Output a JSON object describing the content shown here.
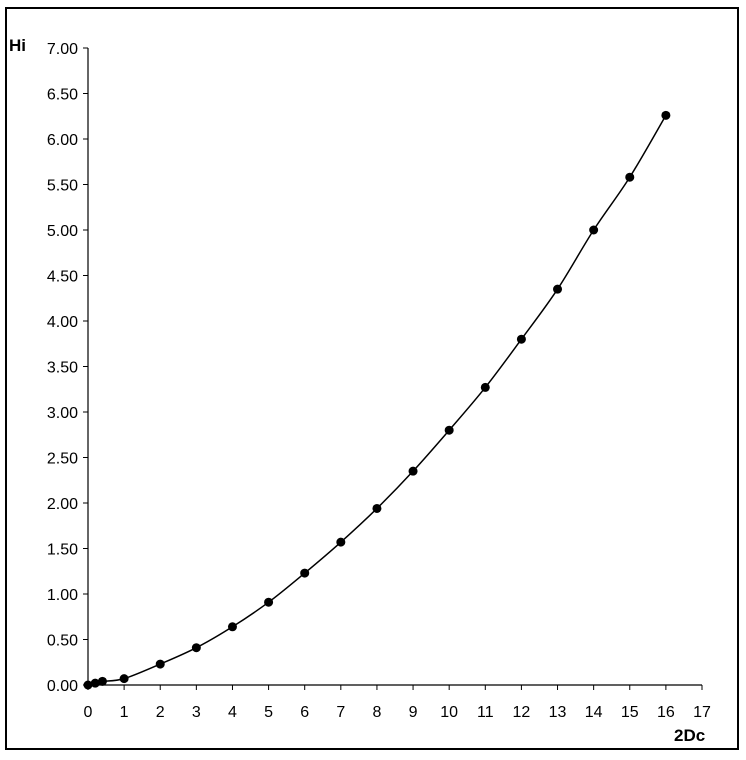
{
  "chart_data": {
    "type": "scatter",
    "title": "",
    "xlabel": "2Dc",
    "ylabel": "Hi",
    "xlim": [
      0,
      17
    ],
    "ylim": [
      0,
      7
    ],
    "x_ticks": [
      0,
      1,
      2,
      3,
      4,
      5,
      6,
      7,
      8,
      9,
      10,
      11,
      12,
      13,
      14,
      15,
      16,
      17
    ],
    "y_ticks": [
      "0.00",
      "0.50",
      "1.00",
      "1.50",
      "2.00",
      "2.50",
      "3.00",
      "3.50",
      "4.00",
      "4.50",
      "5.00",
      "5.50",
      "6.00",
      "6.50",
      "7.00"
    ],
    "grid": false,
    "legend": "none",
    "has_fit_line": true,
    "series": [
      {
        "marker": "filled-circle",
        "color": "#000000",
        "points": [
          {
            "x": 0,
            "y": 0.0
          },
          {
            "x": 0.2,
            "y": 0.02
          },
          {
            "x": 0.4,
            "y": 0.04
          },
          {
            "x": 1,
            "y": 0.07
          },
          {
            "x": 2,
            "y": 0.23
          },
          {
            "x": 3,
            "y": 0.41
          },
          {
            "x": 4,
            "y": 0.64
          },
          {
            "x": 5,
            "y": 0.91
          },
          {
            "x": 6,
            "y": 1.23
          },
          {
            "x": 7,
            "y": 1.57
          },
          {
            "x": 8,
            "y": 1.94
          },
          {
            "x": 9,
            "y": 2.35
          },
          {
            "x": 10,
            "y": 2.8
          },
          {
            "x": 11,
            "y": 3.27
          },
          {
            "x": 12,
            "y": 3.8
          },
          {
            "x": 13,
            "y": 4.35
          },
          {
            "x": 14,
            "y": 5.0
          },
          {
            "x": 15,
            "y": 5.58
          },
          {
            "x": 16,
            "y": 6.26
          }
        ]
      }
    ]
  }
}
